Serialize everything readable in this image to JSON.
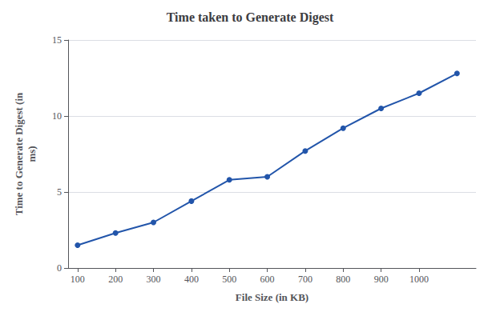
{
  "chart_data": {
    "type": "line",
    "title": "Time taken to Generate Digest",
    "xlabel": "File Size (in KB)",
    "ylabel": "Time to Generate Digest (in\nms)",
    "x": [
      100,
      200,
      300,
      400,
      500,
      600,
      700,
      800,
      900,
      1000,
      1100
    ],
    "values": [
      1.5,
      2.3,
      3.0,
      4.4,
      5.8,
      6.0,
      7.7,
      9.2,
      10.5,
      11.5,
      12.8
    ],
    "color": "#2255AA",
    "marker": "circle",
    "xlim": [
      75,
      1150
    ],
    "ylim": [
      0,
      15
    ],
    "xticks": [
      100,
      200,
      300,
      400,
      500,
      600,
      700,
      800,
      900,
      1000
    ],
    "yticks": [
      0,
      5,
      10,
      15
    ],
    "grid": true
  }
}
